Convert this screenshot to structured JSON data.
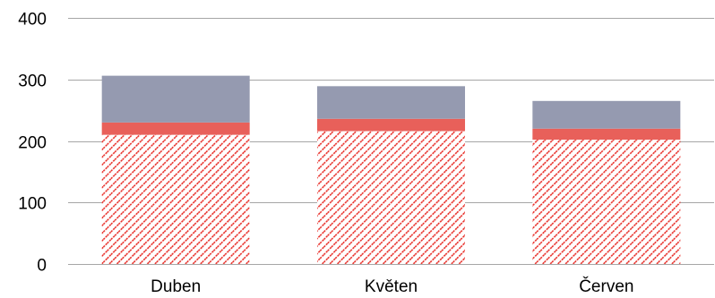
{
  "chart_data": {
    "type": "bar",
    "stacked": true,
    "categories": [
      "Duben",
      "Květen",
      "Červen"
    ],
    "series": [
      {
        "values": [
          210,
          216,
          202
        ],
        "color": "#e8302a",
        "pattern": "diagonal-hatch"
      },
      {
        "values": [
          20,
          20,
          18
        ],
        "color": "#e8605a"
      },
      {
        "values": [
          76,
          53,
          45
        ],
        "color": "#959ab0"
      }
    ],
    "ylim": [
      0,
      400
    ],
    "yticks": [
      0,
      100,
      200,
      300,
      400
    ],
    "grid": true,
    "title": "",
    "xlabel": "",
    "ylabel": ""
  }
}
